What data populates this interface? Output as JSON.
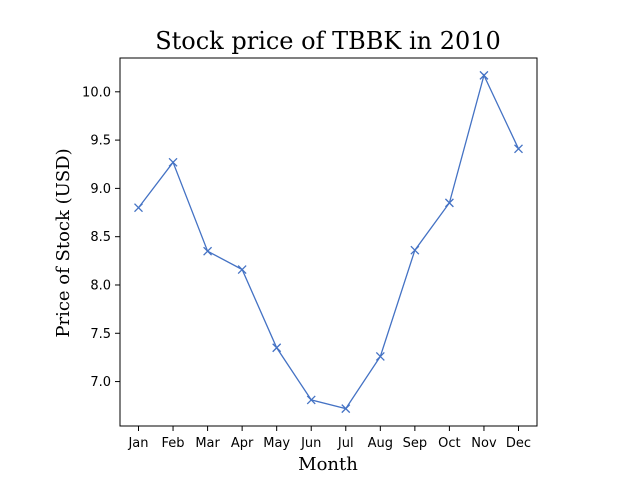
{
  "chart_data": {
    "type": "line",
    "title": "Stock price of TBBK in 2010",
    "xlabel": "Month",
    "ylabel": "Price of Stock (USD)",
    "categories": [
      "Jan",
      "Feb",
      "Mar",
      "Apr",
      "May",
      "Jun",
      "Jul",
      "Aug",
      "Sep",
      "Oct",
      "Nov",
      "Dec"
    ],
    "series": [
      {
        "values": [
          8.8,
          9.27,
          8.35,
          8.16,
          7.35,
          6.81,
          6.72,
          7.26,
          8.36,
          8.85,
          10.17,
          9.41
        ],
        "color": "#4472c4",
        "marker": "x"
      }
    ],
    "ylim": [
      6.54,
      10.35
    ],
    "yticks": [
      "7.0",
      "7.5",
      "8.0",
      "8.5",
      "9.0",
      "9.5",
      "10.0"
    ],
    "grid": false,
    "legend": false
  }
}
